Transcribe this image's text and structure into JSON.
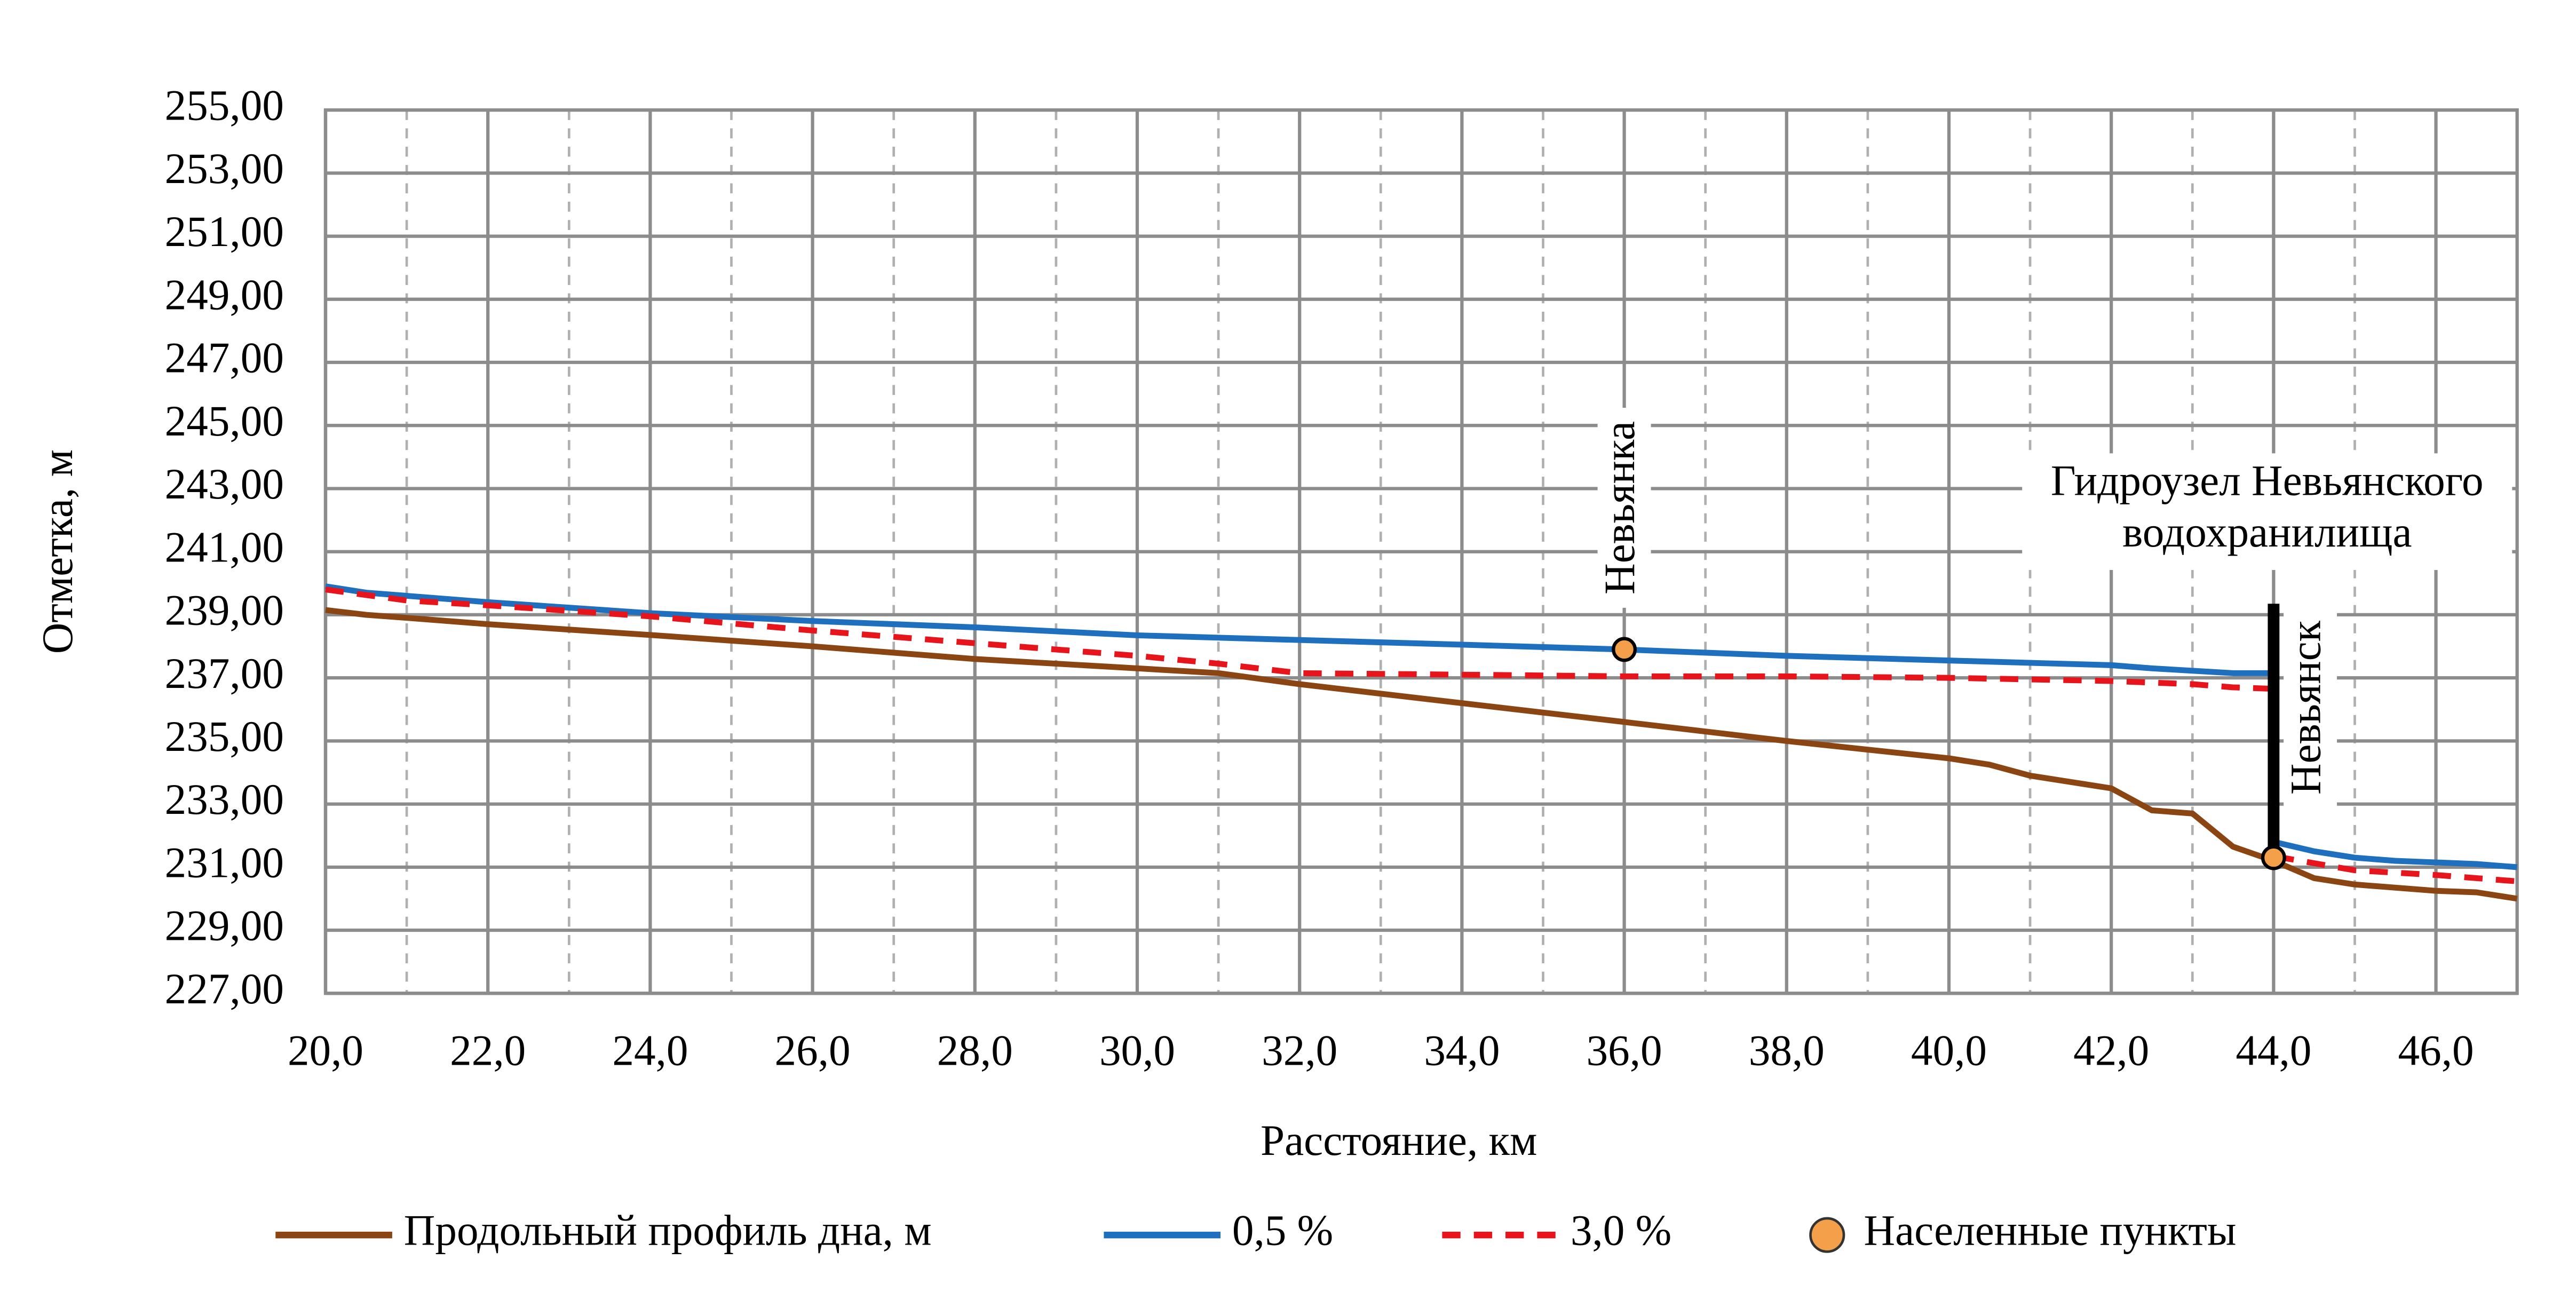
{
  "chart_data": {
    "type": "line",
    "x_label": "Расстояние, км",
    "y_label": "Отметка, м",
    "xlim": [
      20,
      47
    ],
    "ylim": [
      227,
      255
    ],
    "xticks": [
      {
        "value": 20,
        "label": "20,0"
      },
      {
        "value": 22,
        "label": "22,0"
      },
      {
        "value": 24,
        "label": "24,0"
      },
      {
        "value": 26,
        "label": "26,0"
      },
      {
        "value": 28,
        "label": "28,0"
      },
      {
        "value": 30,
        "label": "30,0"
      },
      {
        "value": 32,
        "label": "32,0"
      },
      {
        "value": 34,
        "label": "34,0"
      },
      {
        "value": 36,
        "label": "36,0"
      },
      {
        "value": 38,
        "label": "38,0"
      },
      {
        "value": 40,
        "label": "40,0"
      },
      {
        "value": 42,
        "label": "42,0"
      },
      {
        "value": 44,
        "label": "44,0"
      },
      {
        "value": 46,
        "label": "46,0"
      }
    ],
    "x_minor_ticks": [
      21,
      23,
      25,
      27,
      29,
      31,
      33,
      35,
      37,
      39,
      41,
      43,
      45,
      47
    ],
    "yticks": [
      {
        "value": 227,
        "label": "227,00"
      },
      {
        "value": 229,
        "label": "229,00"
      },
      {
        "value": 231,
        "label": "231,00"
      },
      {
        "value": 233,
        "label": "233,00"
      },
      {
        "value": 235,
        "label": "235,00"
      },
      {
        "value": 237,
        "label": "237,00"
      },
      {
        "value": 239,
        "label": "239,00"
      },
      {
        "value": 241,
        "label": "241,00"
      },
      {
        "value": 243,
        "label": "243,00"
      },
      {
        "value": 245,
        "label": "245,00"
      },
      {
        "value": 247,
        "label": "247,00"
      },
      {
        "value": 249,
        "label": "249,00"
      },
      {
        "value": 251,
        "label": "251,00"
      },
      {
        "value": 253,
        "label": "253,00"
      },
      {
        "value": 255,
        "label": "255,00"
      }
    ],
    "grid": true,
    "legend": "bottom",
    "series": [
      {
        "name": "Продольный профиль дна, м",
        "color": "#8b4513",
        "style": "solid",
        "x": [
          20,
          20.5,
          21,
          22,
          24,
          26,
          28,
          30,
          31,
          32,
          34,
          36,
          38,
          40,
          40.5,
          41,
          42,
          42.5,
          43,
          43.5,
          44,
          44.5,
          45,
          46,
          46.5,
          47
        ],
        "values": [
          239.15,
          239.0,
          238.9,
          238.7,
          238.36,
          238.0,
          237.6,
          237.3,
          237.15,
          236.8,
          236.2,
          235.6,
          235.0,
          234.45,
          234.25,
          233.9,
          233.5,
          232.8,
          232.7,
          231.65,
          231.2,
          230.65,
          230.45,
          230.25,
          230.2,
          230.0
        ]
      },
      {
        "name": "0,5 %",
        "color": "#1f6fbf",
        "style": "solid",
        "x": [
          20,
          20.5,
          22,
          24,
          26,
          28,
          30,
          32,
          34,
          36,
          38,
          40,
          42,
          42.5,
          43.5,
          44,
          44,
          44.5,
          45,
          45.5,
          46.5,
          47
        ],
        "values": [
          239.9,
          239.7,
          239.4,
          239.05,
          238.8,
          238.6,
          238.35,
          238.2,
          238.05,
          237.9,
          237.7,
          237.55,
          237.4,
          237.3,
          237.15,
          237.15,
          231.8,
          231.5,
          231.3,
          231.2,
          231.1,
          231.0
        ]
      },
      {
        "name": "3,0 %",
        "color": "#e8141c",
        "style": "dashed",
        "x": [
          20,
          21,
          22,
          24,
          26,
          28,
          30,
          31,
          32,
          34,
          36,
          38,
          40,
          42,
          43,
          43.5,
          44,
          44,
          45,
          46,
          47
        ],
        "values": [
          239.8,
          239.45,
          239.3,
          238.95,
          238.5,
          238.1,
          237.7,
          237.45,
          237.15,
          237.1,
          237.05,
          237.05,
          237.0,
          236.9,
          236.8,
          236.7,
          236.65,
          231.35,
          230.9,
          230.75,
          230.55
        ]
      },
      {
        "name": "Населенные пункты",
        "color": "#f4a04a",
        "type": "scatter",
        "x": [
          36,
          44
        ],
        "values": [
          237.9,
          231.3
        ],
        "labels": [
          "Невьянка",
          "Невьянск"
        ]
      }
    ],
    "dam": {
      "label": [
        "Гидроузел Невьянского",
        "водохранилища"
      ],
      "x": 44,
      "y": [
        231.2,
        239.35
      ],
      "color": "#000000"
    }
  }
}
